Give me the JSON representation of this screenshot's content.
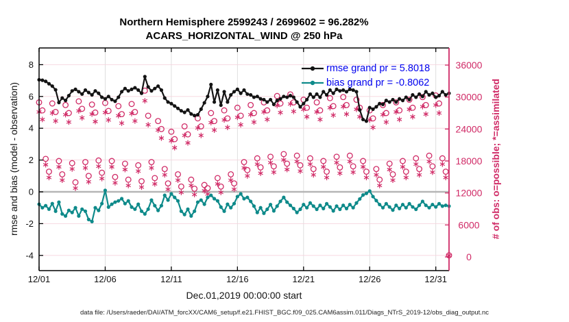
{
  "figure": {
    "title_line1": "Northern Hemisphere 2599243 / 2699602 = 96.282%",
    "title_line2": "ACARS_HORIZONTAL_WIND @ 250 hPa",
    "footer": "data file: /Users/raeder/DAI/ATM_forcXX/CAM6_setup/f.e21.FHIST_BGC.f09_025.CAM6assim.011/Diags_NTrS_2019-12/obs_diag_output.nc"
  },
  "colors": {
    "rmse_line": "#141414",
    "bias_line": "#0e8a8a",
    "obs_markers": "#d02a66",
    "legend_text": "#0000ee",
    "grid_horizontal": "#f6d4de",
    "grid_vertical": "#dbdbdb",
    "zero_line": "#b5b5b5",
    "right_axis": "#d02a66"
  },
  "chart_data": {
    "type": "line",
    "title": "Northern Hemisphere 2599243 / 2699602 = 96.282% — ACARS_HORIZONTAL_WIND @ 250 hPa",
    "grid": true,
    "time_step_hours": 6,
    "x_axis": {
      "label": "Dec.01,2019 00:00:00 start",
      "tick_days": [
        0,
        5,
        10,
        15,
        20,
        25,
        30
      ],
      "tick_labels": [
        "12/01",
        "12/06",
        "12/11",
        "12/16",
        "12/21",
        "12/26",
        "12/31"
      ],
      "range_days": [
        0,
        31
      ]
    },
    "left_axis": {
      "label": "rmse and bias (model - observation)",
      "ticks": [
        -4,
        -2,
        0,
        2,
        4,
        6,
        8
      ],
      "ylim": [
        -4.96,
        9.05
      ]
    },
    "right_axis": {
      "label": "# of obs: o=possible; *=assimilated",
      "ticks": [
        0,
        6000,
        12000,
        18000,
        24000,
        30000,
        36000
      ],
      "ylim": [
        -2570,
        39210
      ]
    },
    "legend": [
      {
        "label": "rmse grand pr = 5.8018",
        "color": "#141414"
      },
      {
        "label": "bias grand pr = -0.8062",
        "color": "#0e8a8a"
      }
    ],
    "series": [
      {
        "name": "rmse",
        "axis": "left",
        "color": "#141414",
        "marker": "dot",
        "values": [
          7.05,
          7.02,
          6.95,
          6.8,
          6.65,
          6.42,
          5.62,
          5.9,
          5.75,
          6.05,
          6.35,
          6.45,
          6.3,
          6.15,
          6.4,
          6.25,
          6.1,
          6.35,
          6.2,
          5.95,
          5.85,
          6.0,
          5.8,
          5.7,
          5.95,
          6.3,
          6.5,
          6.35,
          6.45,
          6.55,
          6.4,
          6.2,
          7.25,
          6.6,
          6.35,
          6.5,
          6.65,
          6.4,
          5.9,
          5.65,
          5.55,
          5.4,
          5.25,
          5.1,
          5.0,
          5.15,
          4.9,
          4.8,
          4.85,
          5.2,
          5.6,
          6.0,
          6.75,
          5.65,
          6.4,
          5.45,
          6.3,
          5.65,
          6.1,
          6.3,
          6.45,
          6.2,
          6.4,
          6.15,
          6.1,
          5.95,
          6.0,
          5.85,
          5.8,
          5.65,
          5.8,
          5.5,
          5.75,
          5.85,
          6.0,
          5.95,
          6.05,
          5.95,
          5.65,
          5.35,
          5.55,
          5.8,
          6.15,
          5.95,
          6.15,
          5.95,
          6.3,
          6.1,
          6.4,
          6.2,
          6.45,
          6.35,
          6.4,
          6.3,
          6.45,
          6.4,
          6.3,
          5.15,
          4.55,
          4.45,
          5.3,
          5.2,
          5.35,
          5.55,
          5.5,
          5.75,
          5.65,
          5.8,
          5.65,
          5.85,
          5.75,
          5.95,
          5.8,
          6.1,
          5.95,
          6.15,
          6.0,
          6.3,
          6.1,
          6.2,
          5.95,
          6.05,
          6.3,
          6.1,
          6.2
        ]
      },
      {
        "name": "bias",
        "axis": "left",
        "color": "#0e8a8a",
        "marker": "dot",
        "values": [
          -0.78,
          -1.0,
          -0.87,
          -1.09,
          -0.74,
          -1.22,
          -0.65,
          -1.39,
          -1.52,
          -1.17,
          -1.3,
          -1.0,
          -1.52,
          -1.09,
          -1.22,
          -1.74,
          -1.87,
          -1.0,
          -1.17,
          -0.74,
          0.09,
          -0.96,
          -0.78,
          -0.65,
          -0.57,
          -0.43,
          -0.74,
          -0.57,
          -0.96,
          -1.09,
          -0.78,
          -1.22,
          -1.39,
          -1.09,
          -0.52,
          -0.87,
          -1.17,
          -0.87,
          -0.22,
          -0.52,
          -0.13,
          -0.35,
          -0.57,
          -1.22,
          -1.43,
          -1.09,
          -1.52,
          -1.22,
          -0.65,
          -0.52,
          -0.78,
          -0.35,
          -0.22,
          -0.43,
          -0.57,
          -0.96,
          -1.22,
          -0.78,
          -1.0,
          -0.74,
          -0.3,
          -0.13,
          -0.43,
          -0.35,
          -0.6,
          -0.9,
          -1.3,
          -1.0,
          -1.35,
          -1.1,
          -0.8,
          -1.2,
          -0.9,
          -0.6,
          -0.35,
          -0.65,
          -0.85,
          -1.05,
          -1.3,
          -1.1,
          -0.8,
          -1.0,
          -0.7,
          -0.9,
          -1.1,
          -0.85,
          -1.05,
          -0.75,
          -0.95,
          -1.2,
          -0.9,
          -1.1,
          -0.85,
          -1.05,
          -0.8,
          -1.0,
          -0.7,
          -0.45,
          -0.2,
          -0.1,
          0.05,
          -0.3,
          -0.55,
          -0.8,
          -1.0,
          -0.75,
          -0.95,
          -1.15,
          -0.85,
          -1.05,
          -0.8,
          -1.0,
          -0.75,
          -0.95,
          -1.1,
          -0.85,
          -0.6,
          -0.85,
          -1.0,
          -0.8,
          -0.95,
          -0.75,
          -0.9,
          -0.85,
          -0.9
        ]
      },
      {
        "name": "possible obs (o)",
        "axis": "right",
        "color": "#d02a66",
        "marker": "circle",
        "values": [
          29000,
          27500,
          18400,
          16000,
          28800,
          27200,
          18000,
          15500,
          28500,
          27000,
          17600,
          14000,
          29200,
          27800,
          17800,
          15200,
          28600,
          27100,
          18100,
          15800,
          28900,
          27400,
          18000,
          15000,
          28300,
          26800,
          17500,
          14500,
          28700,
          27200,
          17200,
          14200,
          31200,
          26500,
          17800,
          14800,
          25500,
          24000,
          16500,
          13800,
          23500,
          22100,
          15500,
          13200,
          24500,
          23000,
          14500,
          12800,
          26000,
          24500,
          13500,
          12900,
          27000,
          25500,
          14800,
          13200,
          27500,
          26000,
          15500,
          13800,
          28000,
          26500,
          17800,
          16300,
          28500,
          27000,
          18500,
          16800,
          29000,
          27500,
          18800,
          17000,
          30200,
          28800,
          19300,
          17500,
          30500,
          29000,
          19000,
          17200,
          29500,
          28000,
          18500,
          16500,
          29000,
          27500,
          18000,
          16000,
          29800,
          28300,
          18800,
          16800,
          30000,
          28500,
          19000,
          17000,
          29500,
          28000,
          18000,
          16000,
          27500,
          26000,
          16500,
          14500,
          28500,
          27000,
          17500,
          15500,
          29000,
          27500,
          18000,
          16000,
          29500,
          28000,
          18500,
          16500,
          30000,
          28500,
          19000,
          17000,
          30300,
          28800,
          18500,
          16000,
          300
        ]
      },
      {
        "name": "assimilated obs (*)",
        "axis": "right",
        "color": "#d02a66",
        "marker": "asterisk",
        "values": [
          27200,
          25800,
          17300,
          14900,
          27000,
          25500,
          16900,
          14400,
          26700,
          25300,
          16500,
          12900,
          27400,
          26100,
          16700,
          14100,
          26800,
          25400,
          17000,
          14700,
          27100,
          25700,
          16900,
          13900,
          26500,
          25100,
          16400,
          13400,
          26900,
          25500,
          16100,
          13100,
          29300,
          24800,
          16700,
          13700,
          23800,
          22300,
          15400,
          12700,
          21800,
          20500,
          14400,
          12100,
          22800,
          21400,
          13400,
          11700,
          24200,
          22800,
          12400,
          11800,
          25200,
          23800,
          13700,
          12100,
          25700,
          24300,
          14400,
          12700,
          26200,
          24800,
          16700,
          15200,
          26700,
          25300,
          17400,
          15700,
          27200,
          25800,
          17700,
          15900,
          28400,
          27100,
          18200,
          16400,
          28700,
          27300,
          17900,
          16100,
          27700,
          26300,
          17400,
          15400,
          27200,
          25800,
          16900,
          14900,
          28000,
          26600,
          17700,
          15700,
          28200,
          26800,
          17900,
          15900,
          27700,
          26300,
          16900,
          14900,
          25700,
          24300,
          15400,
          13400,
          26700,
          25300,
          16400,
          14400,
          27200,
          25800,
          16900,
          14900,
          27700,
          26300,
          17400,
          15400,
          28200,
          26800,
          17900,
          15900,
          28500,
          27000,
          17400,
          14900,
          250
        ]
      }
    ]
  }
}
